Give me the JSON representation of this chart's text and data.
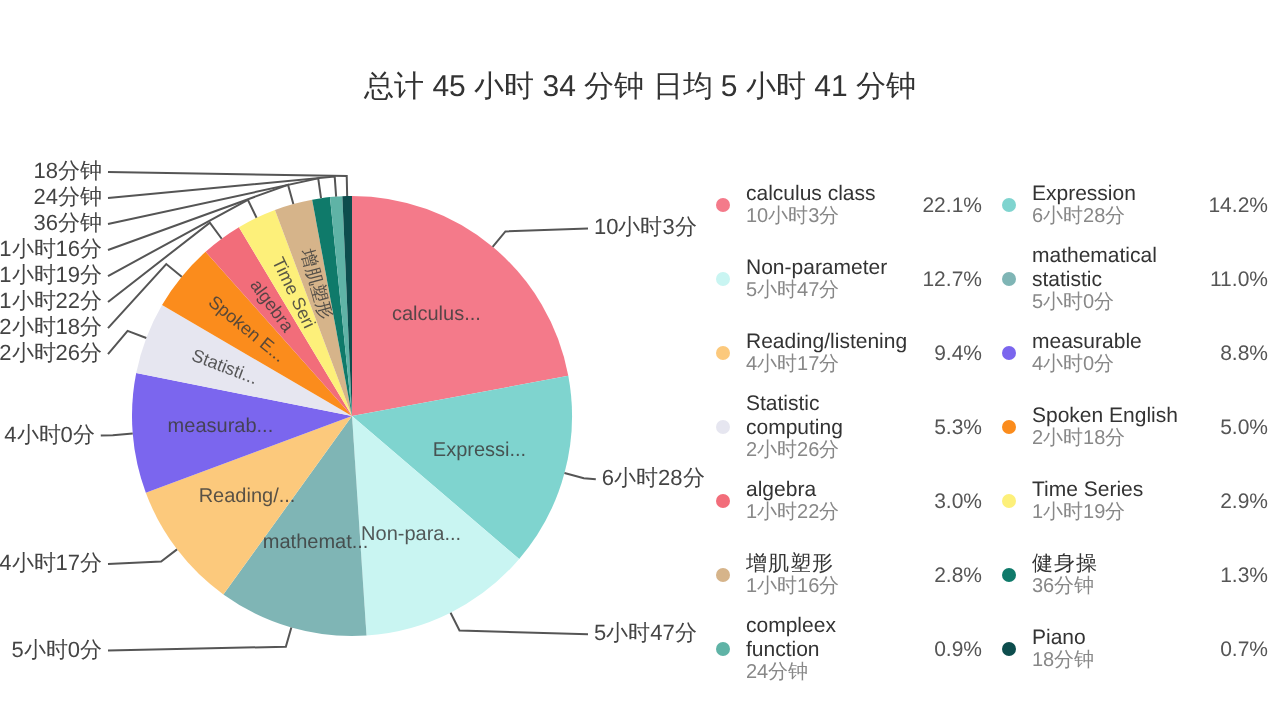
{
  "chart_data": {
    "type": "pie",
    "title": "总计 45 小时 34 分钟 日均 5 小时 41 分钟",
    "categories": [
      "calculus class",
      "Expression",
      "Non-parameter",
      "mathematical statistic",
      "Reading/listening",
      "measurable",
      "Statistic computing",
      "Spoken English",
      "algebra",
      "Time Series",
      "增肌塑形",
      "健身操",
      "compleex function",
      "Piano"
    ],
    "values": [
      22.1,
      14.2,
      12.7,
      11.0,
      9.4,
      8.8,
      5.3,
      5.0,
      3.0,
      2.9,
      2.8,
      1.3,
      0.9,
      0.7
    ],
    "value_labels": [
      "22.1%",
      "14.2%",
      "12.7%",
      "11.0%",
      "9.4%",
      "8.8%",
      "5.3%",
      "5.0%",
      "3.0%",
      "2.9%",
      "2.8%",
      "1.3%",
      "0.9%",
      "0.7%"
    ],
    "colors": [
      "#f47a8a",
      "#7fd4cf",
      "#c9f5f2",
      "#7fb5b5",
      "#fcc97c",
      "#7b66ee",
      "#e6e6f0",
      "#fb8c1c",
      "#f26d7a",
      "#fdf07a",
      "#d6b48a",
      "#0f7a6a",
      "#5fb3a6",
      "#0d4d4d"
    ],
    "legend": "right",
    "annotations": [
      {
        "text": "10小时3分",
        "x": "calculus class"
      },
      {
        "text": "6小时28分",
        "x": "Expression"
      },
      {
        "text": "5小时47分",
        "x": "Non-parameter"
      },
      {
        "text": "5小时0分",
        "x": "mathematical statistic"
      },
      {
        "text": "4小时17分",
        "x": "Reading/listening"
      },
      {
        "text": "4小时0分",
        "x": "measurable"
      },
      {
        "text": "2小时26分",
        "x": "Statistic computing"
      },
      {
        "text": "2小时18分",
        "x": "Spoken English"
      },
      {
        "text": "1小时22分",
        "x": "algebra"
      },
      {
        "text": "1小时19分",
        "x": "Time Series"
      },
      {
        "text": "1小时16分",
        "x": "增肌塑形"
      },
      {
        "text": "36分钟",
        "x": "健身操"
      },
      {
        "text": "24分钟",
        "x": "compleex function"
      },
      {
        "text": "18分钟",
        "x": "Piano"
      },
      {
        "text": "calculus...",
        "x": "calculus class"
      },
      {
        "text": "Expressi...",
        "x": "Expression"
      },
      {
        "text": "Non-para...",
        "x": "Non-parameter"
      },
      {
        "text": "mathemat...",
        "x": "mathematical statistic"
      },
      {
        "text": "Reading/...",
        "x": "Reading/listening"
      },
      {
        "text": "measurab...",
        "x": "measurable"
      },
      {
        "text": "Statisti...",
        "x": "Statistic computing"
      },
      {
        "text": "Spoken E...",
        "x": "Spoken English"
      },
      {
        "text": "algebra",
        "x": "algebra"
      },
      {
        "text": "Time Seri",
        "x": "Time Series"
      },
      {
        "text": "增肌塑形",
        "x": "增肌塑形"
      }
    ]
  }
}
